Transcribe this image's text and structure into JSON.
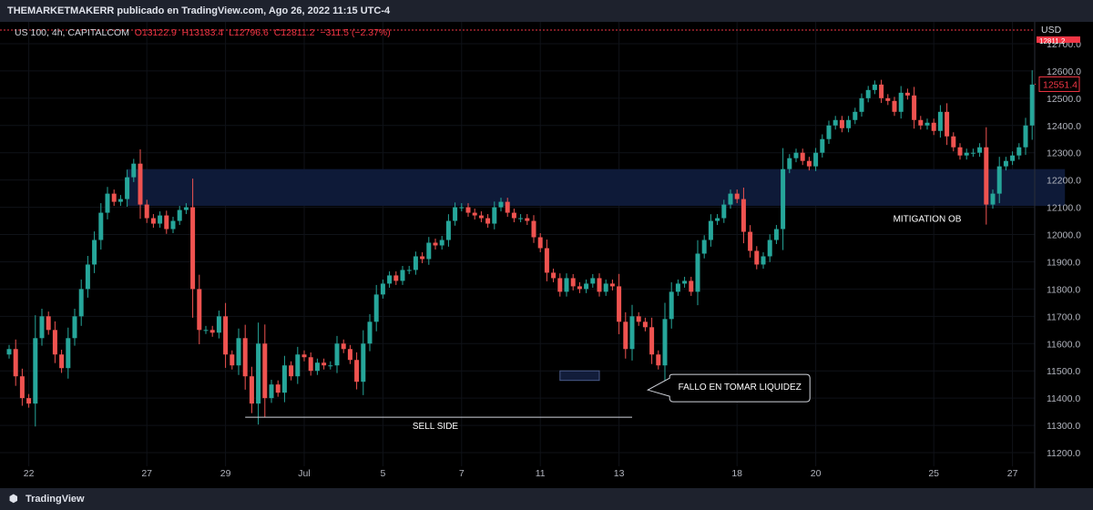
{
  "header": {
    "publisher_line": "THEMARKETMAKERR publicado en TradingView.com, Ago 26, 2022 11:15 UTC-4"
  },
  "legend": {
    "symbol": "US 100, 4h, CAPITALCOM",
    "open": "O13122.9",
    "high": "H13183.4",
    "low": "L12796.6",
    "close": "C12811.2",
    "change": "−311.5 (−2.37%)"
  },
  "price_axis": {
    "currency": "USD",
    "current_price": "12551.4",
    "current_price_top": "12811.2"
  },
  "footer": {
    "logo_icon": "tradingview-logo-icon",
    "brand": "TradingView"
  },
  "colors": {
    "bull": "#26a69a",
    "bear": "#ef5350",
    "zone": "#0e1a38",
    "current": "#f23645"
  },
  "chart_data": {
    "type": "candlestick",
    "symbol": "US 100",
    "timeframe": "4h",
    "ylim": [
      11150,
      12780
    ],
    "y_ticks": [
      11200,
      11300,
      11400,
      11500,
      11600,
      11700,
      11800,
      11900,
      12000,
      12100,
      12200,
      12300,
      12400,
      12500,
      12600,
      12700
    ],
    "x_ticks": [
      "22",
      "27",
      "29",
      "Jul",
      "5",
      "7",
      "11",
      "13",
      "18",
      "20",
      "25",
      "27"
    ],
    "x_tick_index": [
      3,
      21,
      33,
      45,
      57,
      69,
      81,
      93,
      111,
      123,
      141,
      153
    ],
    "closes": [
      11580,
      11480,
      11400,
      11380,
      11620,
      11700,
      11650,
      11560,
      11510,
      11620,
      11700,
      11800,
      11890,
      11980,
      12080,
      12150,
      12120,
      12130,
      12210,
      12260,
      12110,
      12060,
      12040,
      12070,
      12020,
      12050,
      12090,
      12100,
      11800,
      11650,
      11650,
      11640,
      11700,
      11560,
      11520,
      11620,
      11480,
      11380,
      11600,
      11400,
      11450,
      11420,
      11520,
      11480,
      11560,
      11550,
      11500,
      11530,
      11520,
      11520,
      11600,
      11580,
      11540,
      11460,
      11600,
      11680,
      11780,
      11820,
      11850,
      11830,
      11870,
      11870,
      11920,
      11910,
      11970,
      11960,
      11980,
      12050,
      12100,
      12100,
      12080,
      12070,
      12060,
      12040,
      12100,
      12120,
      12080,
      12060,
      12060,
      12050,
      11990,
      11950,
      11860,
      11840,
      11790,
      11840,
      11810,
      11800,
      11820,
      11840,
      11790,
      11820,
      11810,
      11680,
      11580,
      11700,
      11680,
      11660,
      11560,
      11520,
      11690,
      11790,
      11820,
      11830,
      11790,
      11930,
      11980,
      12050,
      12060,
      12110,
      12150,
      12130,
      12010,
      11940,
      11890,
      11920,
      11980,
      12020,
      12240,
      12280,
      12300,
      12270,
      12250,
      12300,
      12350,
      12400,
      12420,
      12390,
      12420,
      12450,
      12500,
      12530,
      12550,
      12500,
      12490,
      12450,
      12520,
      12510,
      12420,
      12400,
      12410,
      12380,
      12450,
      12360,
      12320,
      12290,
      12300,
      12300,
      12320,
      12110,
      12150,
      12250,
      12270,
      12290,
      12320,
      12400,
      12550
    ],
    "annotations": [
      {
        "id": "mitigation_ob",
        "kind": "zone",
        "x_from": 18,
        "x_to": 161,
        "y_from": 12105,
        "y_to": 12240,
        "label": "MITIGATION OB",
        "label_x": 140,
        "label_y": 12060
      },
      {
        "id": "sell_side",
        "kind": "level",
        "x_from": 36,
        "x_to": 95,
        "y": 11330,
        "label": "SELL SIDE",
        "label_x": 65,
        "label_y": 11300
      },
      {
        "id": "liquidity_box",
        "kind": "box",
        "x_from": 84,
        "x_to": 90,
        "y_from": 11465,
        "y_to": 11500
      },
      {
        "id": "fallo_liquidez",
        "kind": "callout",
        "x": 96,
        "y": 11430,
        "label": "FALLO EN TOMAR LIQUIDEZ"
      }
    ]
  }
}
